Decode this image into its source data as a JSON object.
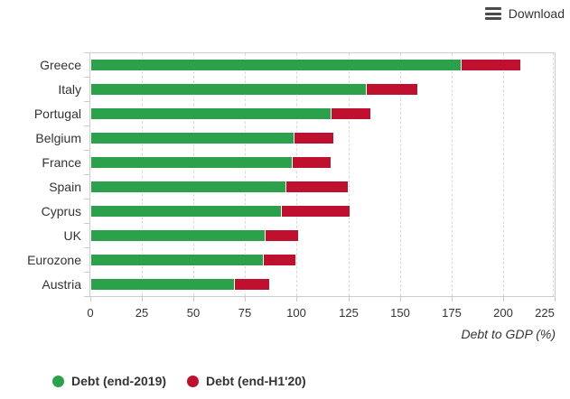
{
  "toolbar": {
    "download_label": "Download"
  },
  "colors": {
    "green": "#2BA14B",
    "red": "#C0102F",
    "text": "#333333",
    "axis": "#CCCCCC",
    "grid": "#D9D9D9"
  },
  "chart_data": {
    "type": "bar",
    "orientation": "horizontal",
    "stacked": true,
    "categories": [
      "Greece",
      "Italy",
      "Portugal",
      "Belgium",
      "France",
      "Spain",
      "Cyprus",
      "UK",
      "Eurozone",
      "Austria"
    ],
    "series": [
      {
        "name": "Debt (end-2019)",
        "color": "#2BA14B",
        "values": [
          180,
          134,
          117,
          99,
          98,
          95,
          93,
          85,
          84,
          70
        ]
      },
      {
        "name": "Debt (end-H1'20)",
        "color": "#C0102F",
        "values": [
          209,
          159,
          136,
          118,
          117,
          125,
          126,
          101,
          100,
          87
        ],
        "note": "values are total debt levels; red segment is drawn from the end-2019 value to this total"
      }
    ],
    "title": "",
    "xlabel": "Debt to GDP (%)",
    "ylabel": "",
    "xticks": [
      0,
      25,
      50,
      75,
      100,
      125,
      150,
      175,
      200,
      225
    ],
    "xlim": [
      0,
      225
    ],
    "grid": "vertical-dashed",
    "legend_position": "bottom-left"
  }
}
